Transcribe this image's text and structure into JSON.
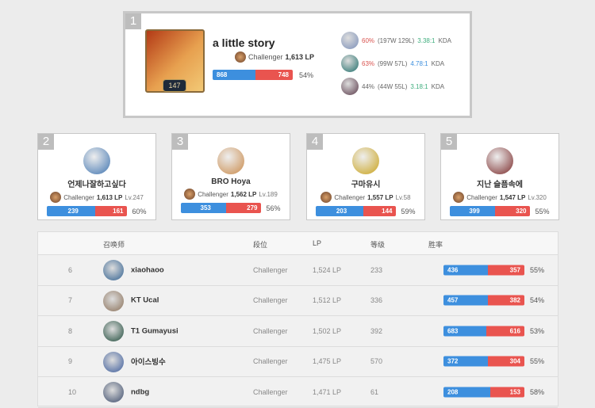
{
  "top": {
    "rank": "1",
    "level": "147",
    "name": "a little story",
    "tier": "Challenger",
    "lp": "1,613 LP",
    "wins": "868",
    "losses": "748",
    "winrate": "54%",
    "champions": [
      {
        "wr": "60%",
        "record": "(197W 129L)",
        "kda": "3.38:1",
        "kda_suffix": "KDA",
        "wr_color": "red",
        "kda_color": "green",
        "avatar": "#7b8fb8"
      },
      {
        "wr": "63%",
        "record": "(99W 57L)",
        "kda": "4.78:1",
        "kda_suffix": "KDA",
        "wr_color": "red",
        "kda_color": "blue",
        "avatar": "#1f6e6a"
      },
      {
        "wr": "44%",
        "record": "(44W 55L)",
        "kda": "3.18:1",
        "kda_suffix": "KDA",
        "wr_color": "",
        "kda_color": "green",
        "avatar": "#5a3a4a"
      }
    ]
  },
  "cards": [
    {
      "rank": "2",
      "name": "언제나잘하고싶다",
      "tier": "Challenger",
      "lp": "1,613 LP",
      "level": "Lv.247",
      "wins": "239",
      "losses": "161",
      "winrate": "60%",
      "avatar": "#3f74b0"
    },
    {
      "rank": "3",
      "name": "BRO Hoya",
      "tier": "Challenger",
      "lp": "1,562 LP",
      "level": "Lv.189",
      "wins": "353",
      "losses": "279",
      "winrate": "56%",
      "avatar": "#c98a4a"
    },
    {
      "rank": "4",
      "name": "구마유시",
      "tier": "Challenger",
      "lp": "1,557 LP",
      "level": "Lv.58",
      "wins": "203",
      "losses": "144",
      "winrate": "59%",
      "avatar": "#c9a21a"
    },
    {
      "rank": "5",
      "name": "지난 슬픔속에",
      "tier": "Challenger",
      "lp": "1,547 LP",
      "level": "Lv.320",
      "wins": "399",
      "losses": "320",
      "winrate": "55%",
      "avatar": "#7a2a2a"
    }
  ],
  "table": {
    "headers": {
      "summoner": "召唤师",
      "tier": "段位",
      "lp": "LP",
      "level": "等级",
      "winrate": "胜率"
    },
    "rows": [
      {
        "rank": "6",
        "name": "xiaohaoo",
        "tier": "Challenger",
        "lp": "1,524 LP",
        "level": "233",
        "wins": "436",
        "losses": "357",
        "winrate": "55%",
        "avatar": "#2f5f8f"
      },
      {
        "rank": "7",
        "name": "KT Ucal",
        "tier": "Challenger",
        "lp": "1,512 LP",
        "level": "336",
        "wins": "457",
        "losses": "382",
        "winrate": "54%",
        "avatar": "#8a7058"
      },
      {
        "rank": "8",
        "name": "T1 Gumayusi",
        "tier": "Challenger",
        "lp": "1,502 LP",
        "level": "392",
        "wins": "683",
        "losses": "616",
        "winrate": "53%",
        "avatar": "#1e4a3a"
      },
      {
        "rank": "9",
        "name": "아이스빙수",
        "tier": "Challenger",
        "lp": "1,475 LP",
        "level": "570",
        "wins": "372",
        "losses": "304",
        "winrate": "55%",
        "avatar": "#3a5a9a"
      },
      {
        "rank": "10",
        "name": "ndbg",
        "tier": "Challenger",
        "lp": "1,471 LP",
        "level": "61",
        "wins": "208",
        "losses": "153",
        "winrate": "58%",
        "avatar": "#3a4a6a"
      }
    ]
  }
}
